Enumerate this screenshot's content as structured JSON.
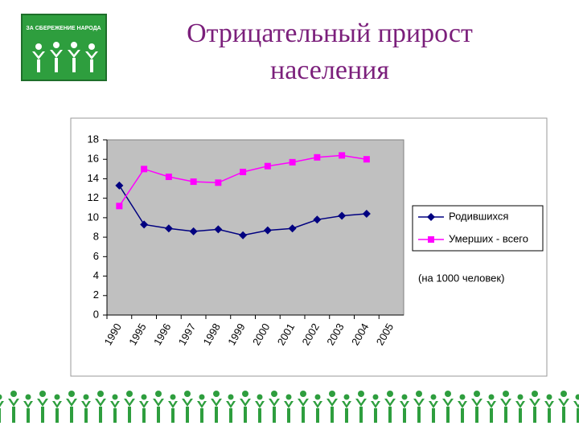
{
  "logo_text": "ЗА СБЕРЕЖЕНИЕ НАРОДА",
  "chart_data": {
    "type": "line",
    "title": "Отрицательный прирост населения",
    "annotation": "(на 1000 человек)",
    "categories": [
      "1990",
      "1995",
      "1996",
      "1997",
      "1998",
      "1999",
      "2000",
      "2001",
      "2002",
      "2003",
      "2004",
      "2005"
    ],
    "series": [
      {
        "name": "Родившихся",
        "color": "#000080",
        "marker": "diamond",
        "values": [
          13.3,
          9.3,
          8.9,
          8.6,
          8.8,
          8.2,
          8.7,
          8.9,
          9.8,
          10.2,
          10.4,
          null
        ]
      },
      {
        "name": "Умерших - всего",
        "color": "#ff00ff",
        "marker": "square",
        "values": [
          11.2,
          15.0,
          14.2,
          13.7,
          13.6,
          14.7,
          15.3,
          15.7,
          16.2,
          16.4,
          16.0,
          null
        ]
      }
    ],
    "ylim": [
      0,
      18
    ],
    "yticks": [
      0,
      2,
      4,
      6,
      8,
      10,
      12,
      14,
      16,
      18
    ],
    "grid": false,
    "legend": "right"
  }
}
